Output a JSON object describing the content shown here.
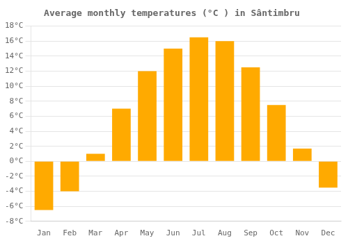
{
  "chart_data": {
    "type": "bar",
    "title": "Average monthly temperatures (°C ) in Sântimbru",
    "categories": [
      "Jan",
      "Feb",
      "Mar",
      "Apr",
      "May",
      "Jun",
      "Jul",
      "Aug",
      "Sep",
      "Oct",
      "Nov",
      "Dec"
    ],
    "values": [
      -6.5,
      -4.0,
      1.0,
      7.0,
      12.0,
      15.0,
      16.5,
      16.0,
      12.5,
      7.5,
      1.7,
      -3.5
    ],
    "color": "#FFAA00",
    "ylim": [
      -8,
      18
    ],
    "yticks": [
      {
        "value": -8,
        "label": "-8°C"
      },
      {
        "value": -6,
        "label": "-6°C"
      },
      {
        "value": -4,
        "label": "-4°C"
      },
      {
        "value": -2,
        "label": "-2°C"
      },
      {
        "value": 0,
        "label": "0°C"
      },
      {
        "value": 2,
        "label": "2°C"
      },
      {
        "value": 4,
        "label": "4°C"
      },
      {
        "value": 6,
        "label": "6°C"
      },
      {
        "value": 8,
        "label": "8°C"
      },
      {
        "value": 10,
        "label": "10°C"
      },
      {
        "value": 12,
        "label": "12°C"
      },
      {
        "value": 14,
        "label": "14°C"
      },
      {
        "value": 16,
        "label": "16°C"
      },
      {
        "value": 18,
        "label": "18°C"
      }
    ],
    "grid": true
  }
}
